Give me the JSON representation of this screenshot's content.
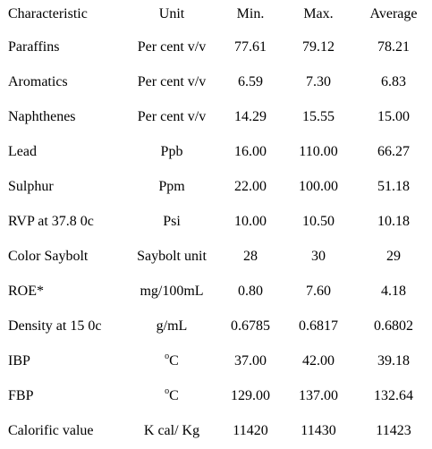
{
  "table": {
    "headers": {
      "characteristic": "Characteristic",
      "unit": "Unit",
      "min": "Min.",
      "max": "Max.",
      "average": "Average"
    },
    "rows": [
      {
        "characteristic": "Paraffins",
        "unit": "Per cent v/v",
        "min": "77.61",
        "max": "79.12",
        "average": "78.21"
      },
      {
        "characteristic": "Aromatics",
        "unit": "Per cent v/v",
        "min": "6.59",
        "max": "7.30",
        "average": "6.83"
      },
      {
        "characteristic": "Naphthenes",
        "unit": "Per cent v/v",
        "min": "14.29",
        "max": "15.55",
        "average": "15.00"
      },
      {
        "characteristic": "Lead",
        "unit": "Ppb",
        "min": "16.00",
        "max": "110.00",
        "average": "66.27"
      },
      {
        "characteristic": "Sulphur",
        "unit": "Ppm",
        "min": "22.00",
        "max": "100.00",
        "average": "51.18"
      },
      {
        "characteristic": "RVP at 37.8 0c",
        "unit": "Psi",
        "min": "10.00",
        "max": "10.50",
        "average": "10.18"
      },
      {
        "characteristic": "Color Saybolt",
        "unit": "Saybolt unit",
        "min": "28",
        "max": "30",
        "average": "29"
      },
      {
        "characteristic": "ROE*",
        "unit": "mg/100mL",
        "min": "0.80",
        "max": "7.60",
        "average": "4.18"
      },
      {
        "characteristic": "Density at 15 0c",
        "unit": "g/mL",
        "min": "0.6785",
        "max": "0.6817",
        "average": "0.6802"
      },
      {
        "characteristic": "IBP",
        "unit_sup": "o",
        "unit": "C",
        "min": "37.00",
        "max": "42.00",
        "average": "39.18"
      },
      {
        "characteristic": "FBP",
        "unit_sup": "o",
        "unit": "C",
        "min": "129.00",
        "max": "137.00",
        "average": "132.64"
      },
      {
        "characteristic": "Calorific value",
        "unit": "K cal/ Kg",
        "min": "11420",
        "max": "11430",
        "average": "11423"
      }
    ]
  }
}
